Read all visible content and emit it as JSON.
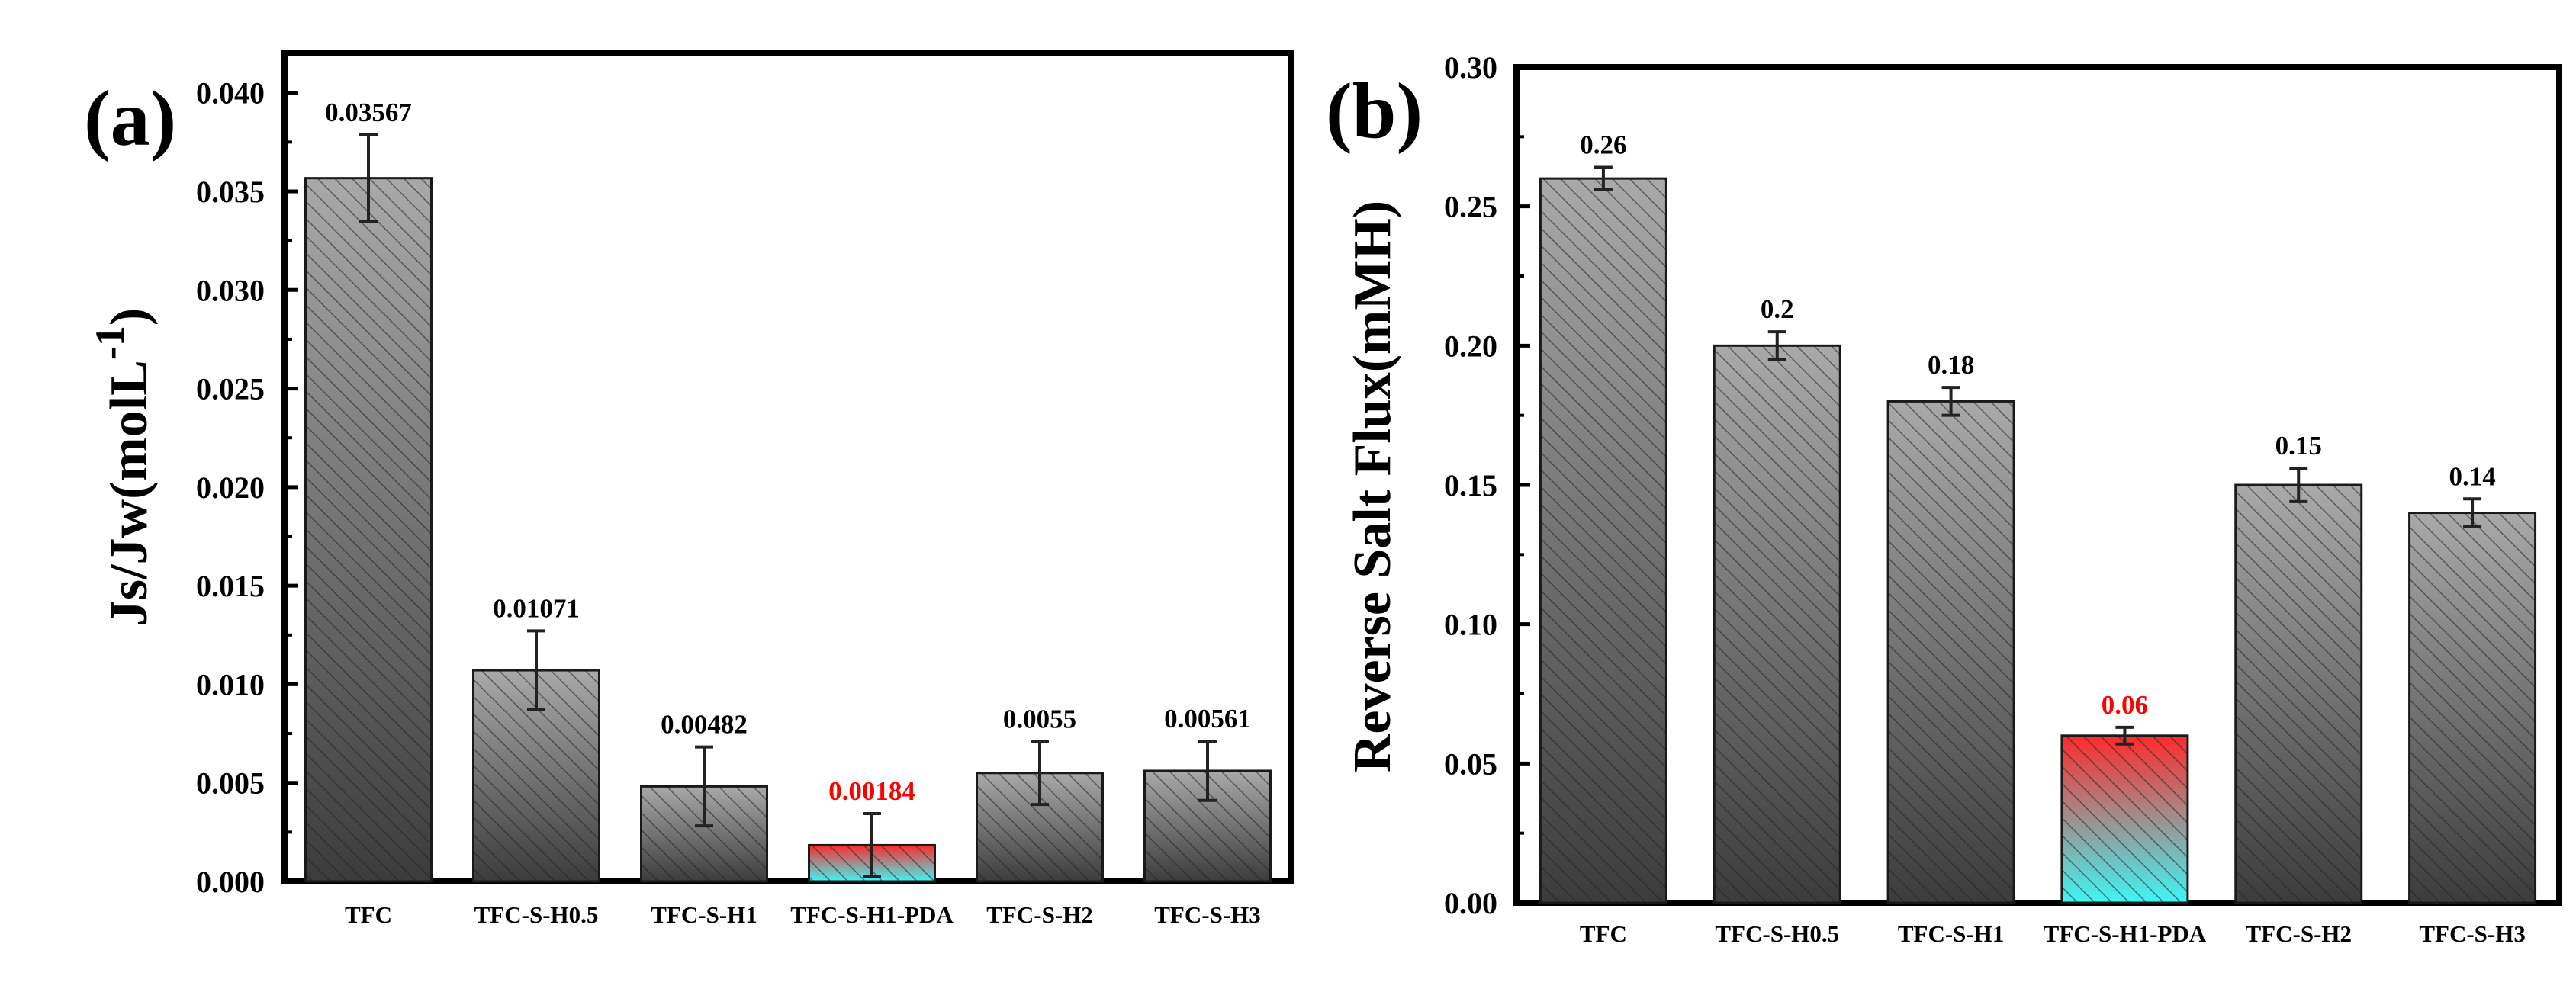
{
  "chart_data": [
    {
      "panel_label": "(a)",
      "type": "bar",
      "categories": [
        "TFC",
        "TFC-S-H0.5",
        "TFC-S-H1",
        "TFC-S-H1-PDA",
        "TFC-S-H2",
        "TFC-S-H3"
      ],
      "values": [
        0.03567,
        0.01071,
        0.00482,
        0.00184,
        0.0055,
        0.00561
      ],
      "errors": [
        0.0022,
        0.002,
        0.002,
        0.0016,
        0.0016,
        0.0015
      ],
      "value_labels": [
        "0.03567",
        "0.01071",
        "0.00482",
        "0.00184",
        "0.0055",
        "0.00561"
      ],
      "highlight_index": 3,
      "ylabel": "Js/Jw(molL",
      "ylabel_superscript": "-1",
      "ylabel_suffix": ")",
      "ylim": [
        0,
        0.042
      ],
      "yticks": [
        0,
        0.005,
        0.01,
        0.015,
        0.02,
        0.025,
        0.03,
        0.035,
        0.04
      ],
      "ytick_labels": [
        "0.000",
        "0.005",
        "0.010",
        "0.015",
        "0.020",
        "0.025",
        "0.030",
        "0.035",
        "0.040"
      ],
      "grid": false
    },
    {
      "panel_label": "(b)",
      "type": "bar",
      "categories": [
        "TFC",
        "TFC-S-H0.5",
        "TFC-S-H1",
        "TFC-S-H1-PDA",
        "TFC-S-H2",
        "TFC-S-H3"
      ],
      "values": [
        0.26,
        0.2,
        0.18,
        0.06,
        0.15,
        0.14
      ],
      "errors": [
        0.004,
        0.005,
        0.005,
        0.003,
        0.006,
        0.005
      ],
      "value_labels": [
        "0.26",
        "0.2",
        "0.18",
        "0.06",
        "0.15",
        "0.14"
      ],
      "highlight_index": 3,
      "ylabel": "Reverse Salt Flux(mMH)",
      "ylim": [
        0,
        0.3
      ],
      "yticks": [
        0,
        0.05,
        0.1,
        0.15,
        0.2,
        0.25,
        0.3
      ],
      "ytick_labels": [
        "0.00",
        "0.05",
        "0.10",
        "0.15",
        "0.20",
        "0.25",
        "0.30"
      ],
      "grid": false
    }
  ],
  "colors": {
    "bar_top": "#a9a9a9",
    "bar_bottom": "#3c3c3c",
    "highlight_top": "#ff2a2a",
    "highlight_bottom": "#3ff5f5",
    "highlight_text": "#ff0000",
    "text": "#000000"
  }
}
